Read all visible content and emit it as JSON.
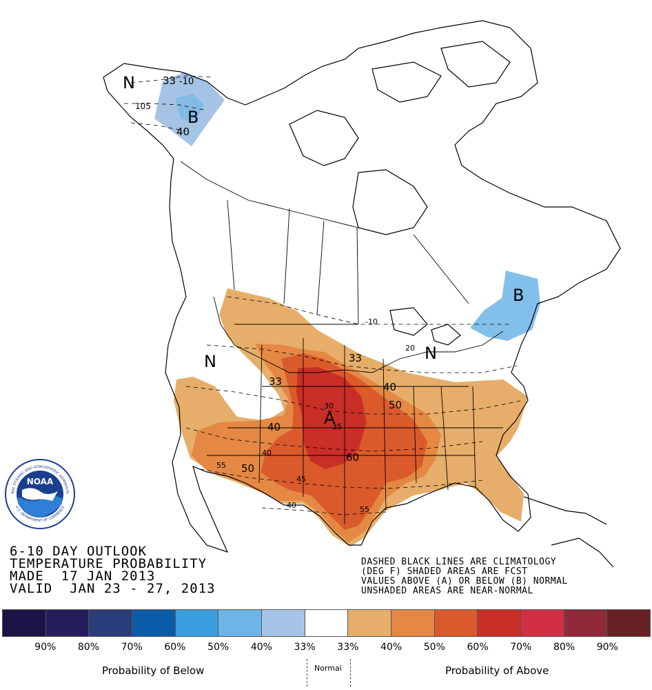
{
  "title_lines": [
    "6-10 DAY OUTLOOK",
    "TEMPERATURE PROBABILITY",
    "MADE  17 JAN 2013",
    "VALID  JAN 23 - 27, 2013"
  ],
  "notes": [
    "DASHED BLACK LINES ARE CLIMATOLOGY",
    "(DEG F) SHADED AREAS ARE FCST",
    "VALUES ABOVE (A) OR BELOW (B) NORMAL",
    "UNSHADED AREAS ARE NEAR-NORMAL"
  ],
  "map_labels": {
    "n_alaska": "N",
    "b_alaska": "B",
    "c33_ak": "33",
    "c10_ak": "-10",
    "c105_ak": "105",
    "c40_ak": "40",
    "b_east": "B",
    "n_west": "N",
    "n_lakes": "N",
    "a_center": "A",
    "c33_a": "33",
    "c33_b": "33",
    "c40_a": "40",
    "c40_b": "40",
    "c40_c": "40",
    "c40_d": "40",
    "c50_a": "50",
    "c50_b": "50",
    "c55_a": "55",
    "c55_b": "55",
    "c60": "60",
    "c45": "45",
    "c30": "30",
    "c35": "35",
    "c10_lakes": "-10",
    "c20": "20"
  },
  "legend": {
    "colors": [
      "#1a1447",
      "#241d5e",
      "#2b3c7a",
      "#0b5ca8",
      "#3a9ee0",
      "#6db4e8",
      "#a5c3e4",
      "#ffffff",
      "#e6ae6a",
      "#e48844",
      "#db5a2c",
      "#c92e27",
      "#d22f45",
      "#92293a",
      "#6a2124"
    ],
    "ticks": [
      "90%",
      "80%",
      "70%",
      "60%",
      "50%",
      "40%",
      "33%",
      "33%",
      "40%",
      "50%",
      "60%",
      "70%",
      "80%",
      "90%"
    ],
    "below_label": "Probability of Below",
    "normal_label": "Normal",
    "above_label": "Probability of Above"
  },
  "logo": {
    "text": "NOAA",
    "ring_top": "NATIONAL OCEANIC AND ATMOSPHERIC ADMINISTRATION",
    "ring_bottom": "U.S. DEPARTMENT OF COMMERCE"
  }
}
